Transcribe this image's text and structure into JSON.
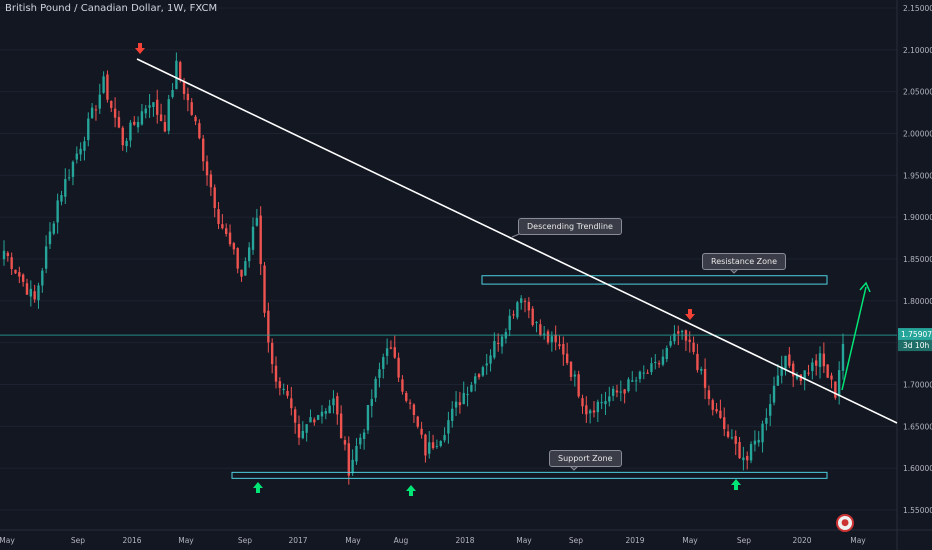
{
  "header": {
    "title": "British Pound / Canadian Dollar, 1W, FXCM"
  },
  "colors": {
    "background": "#131722",
    "bullish": "#26a69a",
    "bearish": "#ef5350",
    "trendline": "#ffffff",
    "zone": "#4dd0e1",
    "arrow_up": "#00e676",
    "arrow_down": "#f44336",
    "price_line": "#26a69a"
  },
  "annotations": {
    "descending_trendline": "Descending Trendline",
    "resistance_zone": "Resistance Zone",
    "support_zone": "Support Zone"
  },
  "price_label": {
    "value": "1.75907",
    "countdown": "3d 10h"
  },
  "icons": [
    "tradingview-logo-icon",
    "arrow-up-icon",
    "arrow-down-icon"
  ],
  "chart_data": {
    "type": "candlestick",
    "symbol": "GBPCAD",
    "timeframe": "1W",
    "ylim": [
      1.53,
      2.15
    ],
    "y_ticks": [
      "1.55000",
      "1.60000",
      "1.65000",
      "1.70000",
      "1.75000",
      "1.80000",
      "1.85000",
      "1.90000",
      "1.95000",
      "2.00000",
      "2.05000",
      "2.10000",
      "2.15000"
    ],
    "x_ticks": [
      "May",
      "Sep",
      "2016",
      "May",
      "Sep",
      "2017",
      "May",
      "Aug",
      "2018",
      "May",
      "Sep",
      "2019",
      "May",
      "Sep",
      "2020",
      "May"
    ],
    "last_price": 1.75907,
    "resistance_zone": [
      1.82,
      1.83
    ],
    "support_zone": [
      1.59,
      1.595
    ],
    "anchor_closes": [
      [
        0,
        1.86
      ],
      [
        8,
        1.8
      ],
      [
        14,
        1.92
      ],
      [
        22,
        2.01
      ],
      [
        26,
        2.06
      ],
      [
        31,
        1.99
      ],
      [
        38,
        2.04
      ],
      [
        42,
        2.01
      ],
      [
        45,
        2.08
      ],
      [
        50,
        2.01
      ],
      [
        56,
        1.9
      ],
      [
        62,
        1.83
      ],
      [
        66,
        1.9
      ],
      [
        68,
        1.79
      ],
      [
        70,
        1.72
      ],
      [
        74,
        1.68
      ],
      [
        77,
        1.63
      ],
      [
        80,
        1.66
      ],
      [
        86,
        1.68
      ],
      [
        90,
        1.6
      ],
      [
        94,
        1.65
      ],
      [
        100,
        1.75
      ],
      [
        104,
        1.7
      ],
      [
        110,
        1.62
      ],
      [
        114,
        1.64
      ],
      [
        120,
        1.69
      ],
      [
        126,
        1.73
      ],
      [
        132,
        1.78
      ],
      [
        135,
        1.81
      ],
      [
        140,
        1.76
      ],
      [
        146,
        1.74
      ],
      [
        152,
        1.67
      ],
      [
        160,
        1.69
      ],
      [
        170,
        1.72
      ],
      [
        176,
        1.76
      ],
      [
        180,
        1.74
      ],
      [
        184,
        1.68
      ],
      [
        190,
        1.63
      ],
      [
        194,
        1.61
      ],
      [
        198,
        1.65
      ],
      [
        203,
        1.73
      ],
      [
        208,
        1.71
      ],
      [
        213,
        1.73
      ],
      [
        217,
        1.69
      ],
      [
        219,
        1.75
      ]
    ]
  }
}
